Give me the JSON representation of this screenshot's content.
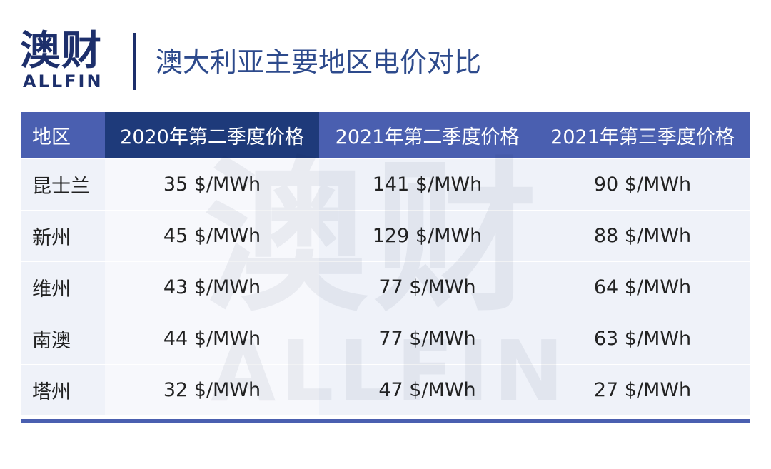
{
  "header": {
    "logo_cn": "澳财",
    "logo_en": "ALLFIN",
    "title": "澳大利亚主要地区电价对比"
  },
  "table": {
    "columns": [
      "地区",
      "2020年第二季度价格",
      "2021年第二季度价格",
      "2021年第三季度价格"
    ],
    "rows": [
      [
        "昆士兰",
        "35 $/MWh",
        "141 $/MWh",
        "90 $/MWh"
      ],
      [
        "新州",
        "45 $/MWh",
        "129 $/MWh",
        "88 $/MWh"
      ],
      [
        "维州",
        "43 $/MWh",
        "77 $/MWh",
        "64 $/MWh"
      ],
      [
        "南澳",
        "44 $/MWh",
        "77 $/MWh",
        "63 $/MWh"
      ],
      [
        "塔州",
        "32 $/MWh",
        "47 $/MWh",
        "27 $/MWh"
      ]
    ]
  }
}
